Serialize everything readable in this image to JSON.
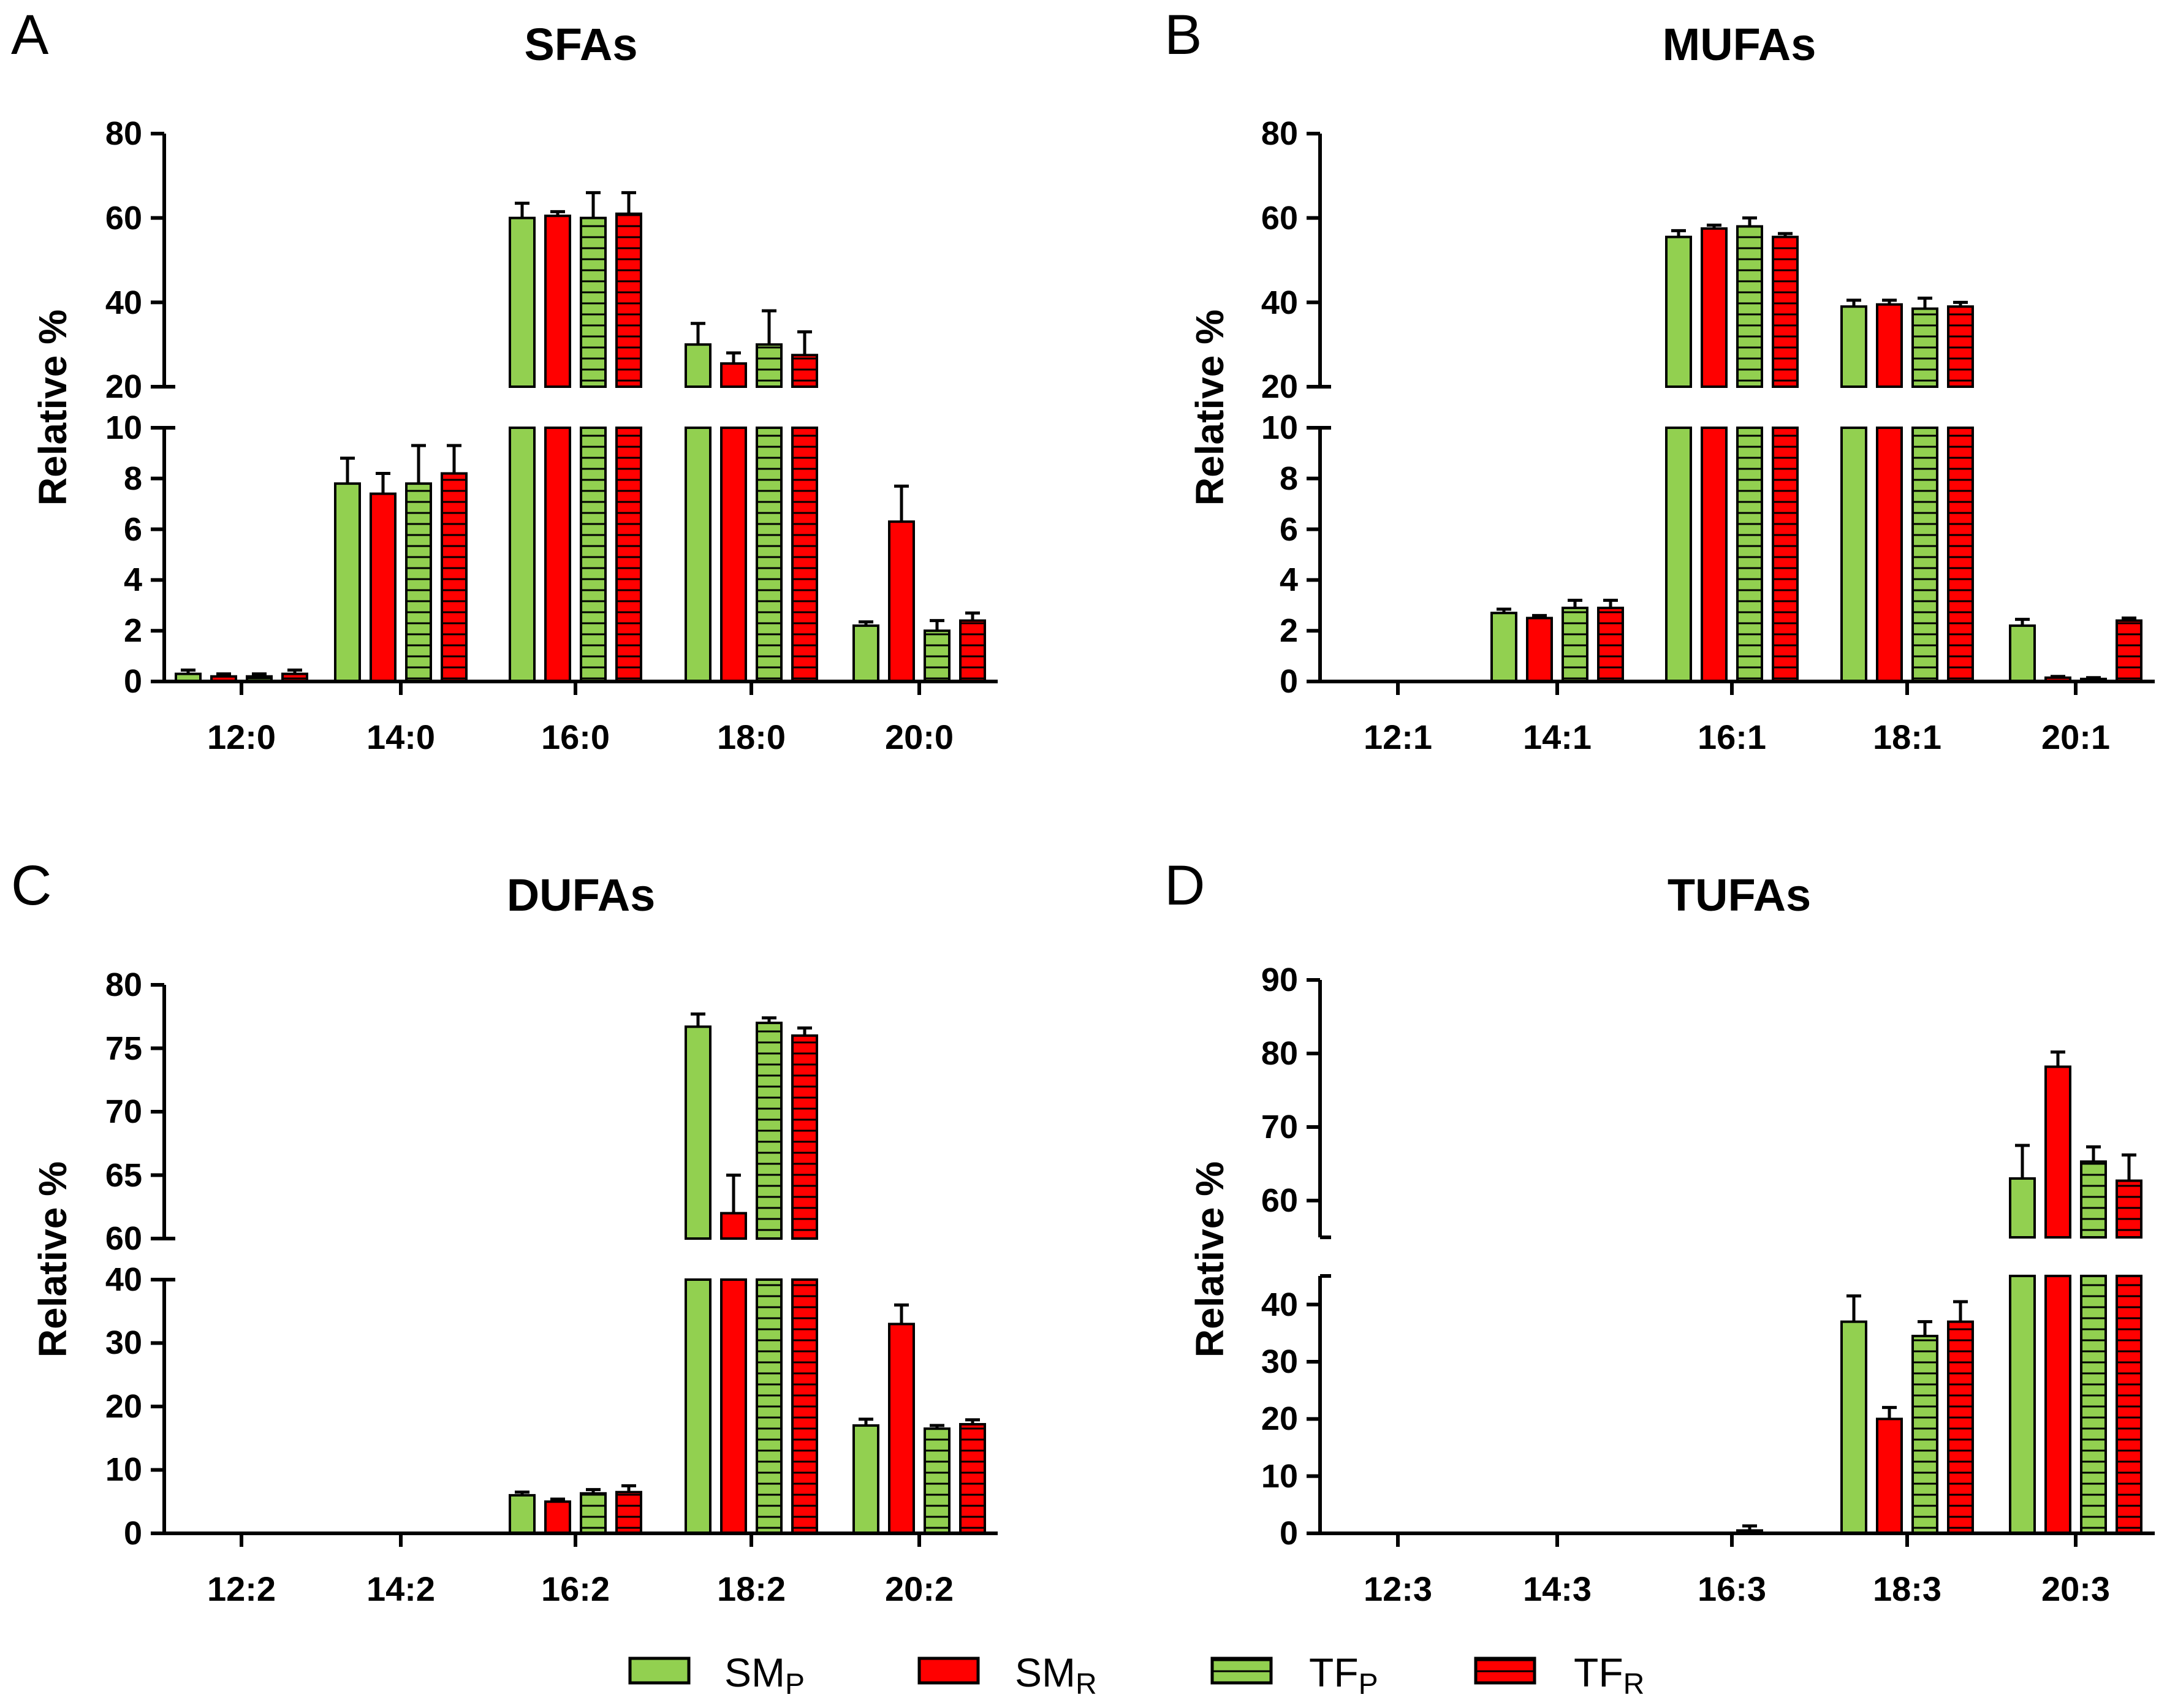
{
  "legend": [
    {
      "key": "smp",
      "main": "SM",
      "sub": "P",
      "fill": "#92d050",
      "pattern": false
    },
    {
      "key": "smr",
      "main": "SM",
      "sub": "R",
      "fill": "#ff0000",
      "pattern": false
    },
    {
      "key": "tfp",
      "main": "TF",
      "sub": "P",
      "fill": "#92d050",
      "pattern": true
    },
    {
      "key": "tfr",
      "main": "TF",
      "sub": "R",
      "fill": "#ff0000",
      "pattern": true
    }
  ],
  "chart_data": [
    {
      "type": "bar",
      "panel": "A",
      "title": "SFAs",
      "ylabel": "Relative %",
      "categories": [
        "12:0",
        "14:0",
        "16:0",
        "18:0",
        "20:0"
      ],
      "y_segments": [
        {
          "range": [
            0,
            10
          ],
          "ticks": [
            "0",
            "2",
            "4",
            "6",
            "8",
            "10"
          ]
        },
        {
          "range": [
            20,
            80
          ],
          "ticks": [
            "20",
            "40",
            "60",
            "80"
          ]
        }
      ],
      "series": [
        {
          "name": "SMP",
          "values": [
            0.3,
            7.8,
            60,
            30,
            2.2
          ],
          "errors": [
            0.15,
            1.0,
            3.5,
            5.0,
            0.15
          ]
        },
        {
          "name": "SMR",
          "values": [
            0.2,
            7.4,
            60.5,
            25.5,
            6.3
          ],
          "errors": [
            0.1,
            0.8,
            1.0,
            2.5,
            1.4
          ]
        },
        {
          "name": "TFP",
          "values": [
            0.2,
            7.8,
            60,
            30,
            2.0
          ],
          "errors": [
            0.1,
            1.5,
            6.0,
            8.0,
            0.4
          ]
        },
        {
          "name": "TFR",
          "values": [
            0.3,
            8.2,
            61,
            27.5,
            2.4
          ],
          "errors": [
            0.15,
            1.1,
            5.0,
            5.5,
            0.3
          ]
        }
      ]
    },
    {
      "type": "bar",
      "panel": "B",
      "title": "MUFAs",
      "ylabel": "Relative %",
      "categories": [
        "12:1",
        "14:1",
        "16:1",
        "18:1",
        "20:1"
      ],
      "y_segments": [
        {
          "range": [
            0,
            10
          ],
          "ticks": [
            "0",
            "2",
            "4",
            "6",
            "8",
            "10"
          ]
        },
        {
          "range": [
            20,
            80
          ],
          "ticks": [
            "20",
            "40",
            "60",
            "80"
          ]
        }
      ],
      "series": [
        {
          "name": "SMP",
          "values": [
            0,
            2.7,
            55.5,
            39,
            2.2
          ],
          "errors": [
            0,
            0.15,
            1.5,
            1.5,
            0.25
          ]
        },
        {
          "name": "SMR",
          "values": [
            0,
            2.5,
            57.5,
            39.5,
            0.15
          ],
          "errors": [
            0,
            0.1,
            0.8,
            1.0,
            0.05
          ]
        },
        {
          "name": "TFP",
          "values": [
            0,
            2.9,
            58,
            38.5,
            0.1
          ],
          "errors": [
            0,
            0.3,
            2.0,
            2.5,
            0.05
          ]
        },
        {
          "name": "TFR",
          "values": [
            0,
            2.9,
            55.5,
            39,
            2.4
          ],
          "errors": [
            0,
            0.3,
            0.8,
            1.0,
            0.1
          ]
        }
      ]
    },
    {
      "type": "bar",
      "panel": "C",
      "title": "DUFAs",
      "ylabel": "Relative %",
      "categories": [
        "12:2",
        "14:2",
        "16:2",
        "18:2",
        "20:2"
      ],
      "y_segments": [
        {
          "range": [
            0,
            40
          ],
          "ticks": [
            "0",
            "10",
            "20",
            "30",
            "40"
          ]
        },
        {
          "range": [
            60,
            80
          ],
          "ticks": [
            "60",
            "65",
            "70",
            "75",
            "80"
          ]
        }
      ],
      "series": [
        {
          "name": "SMP",
          "values": [
            0,
            0,
            6,
            76.7,
            17
          ],
          "errors": [
            0,
            0,
            0.5,
            1.0,
            1.0
          ]
        },
        {
          "name": "SMR",
          "values": [
            0,
            0,
            5,
            62,
            33
          ],
          "errors": [
            0,
            0,
            0.4,
            3.0,
            3.0
          ]
        },
        {
          "name": "TFP",
          "values": [
            0,
            0,
            6.3,
            77,
            16.5
          ],
          "errors": [
            0,
            0,
            0.6,
            0.4,
            0.5
          ]
        },
        {
          "name": "TFR",
          "values": [
            0,
            0,
            6.5,
            76,
            17.2
          ],
          "errors": [
            0,
            0,
            1.0,
            0.6,
            0.7
          ]
        }
      ]
    },
    {
      "type": "bar",
      "panel": "D",
      "title": "TUFAs",
      "ylabel": "Relative %",
      "categories": [
        "12:3",
        "14:3",
        "16:3",
        "18:3",
        "20:3"
      ],
      "y_segments": [
        {
          "range": [
            0,
            45
          ],
          "ticks": [
            "0",
            "10",
            "20",
            "30",
            "40"
          ]
        },
        {
          "range": [
            55,
            90
          ],
          "ticks": [
            "60",
            "70",
            "80",
            "90"
          ]
        }
      ],
      "series": [
        {
          "name": "SMP",
          "values": [
            0,
            0,
            0,
            37,
            63
          ],
          "errors": [
            0,
            0,
            0,
            4.5,
            4.5
          ]
        },
        {
          "name": "SMR",
          "values": [
            0,
            0,
            0,
            20,
            78.2
          ],
          "errors": [
            0,
            0,
            0,
            2.0,
            2.0
          ]
        },
        {
          "name": "TFP",
          "values": [
            0,
            0,
            0.5,
            34.5,
            65.3
          ],
          "errors": [
            0,
            0,
            0.8,
            2.5,
            2.0
          ]
        },
        {
          "name": "TFR",
          "values": [
            0,
            0,
            0,
            37,
            62.7
          ],
          "errors": [
            0,
            0,
            0,
            3.5,
            3.5
          ]
        }
      ]
    }
  ]
}
